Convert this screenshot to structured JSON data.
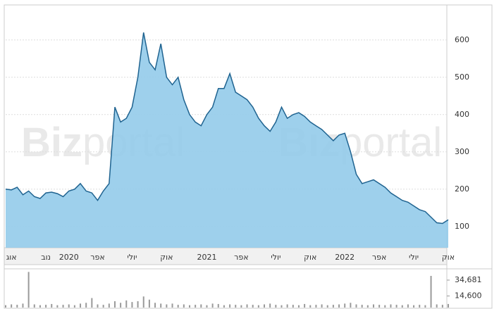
{
  "chart_data": {
    "type": "area",
    "watermark": [
      "Biz",
      "portal"
    ],
    "categories": [
      null,
      "אוג",
      null,
      null,
      null,
      null,
      null,
      "נוב",
      null,
      null,
      null,
      "2020",
      null,
      null,
      null,
      null,
      "אפר",
      null,
      null,
      null,
      null,
      null,
      "יולי",
      null,
      null,
      null,
      null,
      null,
      "אוק",
      null,
      null,
      null,
      null,
      null,
      null,
      "2021",
      null,
      null,
      null,
      null,
      null,
      "אפר",
      null,
      null,
      null,
      null,
      null,
      "יולי",
      null,
      null,
      null,
      null,
      null,
      "אוק",
      null,
      null,
      null,
      null,
      null,
      "2022",
      null,
      null,
      null,
      null,
      null,
      "אפר",
      null,
      null,
      null,
      null,
      null,
      "יולי",
      null,
      null,
      null,
      null,
      null,
      "אוק"
    ],
    "series": [
      {
        "color": "#1f6390",
        "fill": "#93cbea",
        "values": [
          200,
          198,
          205,
          185,
          195,
          180,
          175,
          190,
          192,
          188,
          180,
          195,
          200,
          215,
          195,
          190,
          170,
          195,
          215,
          420,
          380,
          390,
          420,
          500,
          620,
          540,
          520,
          590,
          500,
          480,
          500,
          440,
          400,
          380,
          370,
          400,
          420,
          470,
          470,
          510,
          460,
          450,
          440,
          420,
          390,
          370,
          355,
          380,
          420,
          390,
          400,
          405,
          395,
          380,
          370,
          360,
          345,
          330,
          345,
          350,
          300,
          240,
          215,
          220,
          225,
          215,
          205,
          190,
          180,
          170,
          165,
          155,
          145,
          140,
          125,
          110,
          108,
          118
        ]
      },
      {
        "color": "#9a9a9a",
        "axis": "y2",
        "values": [
          3000,
          4000,
          3500,
          5000,
          45000,
          4000,
          3000,
          3500,
          4500,
          3000,
          3500,
          4000,
          3000,
          5000,
          6000,
          12000,
          4000,
          3500,
          5000,
          8000,
          6000,
          9000,
          7000,
          8000,
          14000,
          10000,
          6000,
          5000,
          4000,
          5000,
          3500,
          4000,
          3000,
          3500,
          4000,
          3000,
          5000,
          4500,
          3000,
          4000,
          3500,
          3000,
          4000,
          3500,
          3000,
          4000,
          5000,
          3500,
          3000,
          4000,
          3500,
          3000,
          4500,
          3000,
          3500,
          4000,
          3000,
          3500,
          4000,
          5000,
          6000,
          4000,
          3500,
          3000,
          4000,
          3500,
          3000,
          4000,
          3500,
          3000,
          4000,
          3000,
          3500,
          3000,
          40000,
          4000,
          3500,
          4500
        ]
      }
    ],
    "ylim": [
      43,
      692
    ],
    "yticks": [
      100,
      200,
      300,
      400,
      500,
      600
    ],
    "y2lim": [
      0,
      48000
    ],
    "y2ticks": [
      {
        "value": 14600,
        "label": "14,600"
      },
      {
        "value": 34681,
        "label": "34,681"
      }
    ],
    "grid": true
  }
}
